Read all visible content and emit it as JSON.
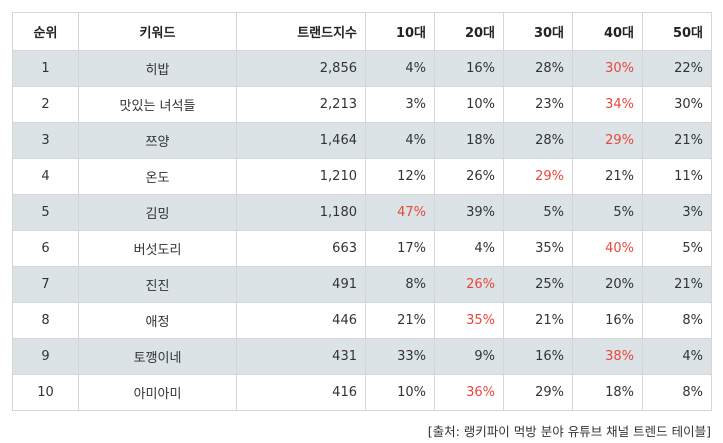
{
  "table": {
    "headers": [
      "순위",
      "키워드",
      "트랜드지수",
      "10대",
      "20대",
      "30대",
      "40대",
      "50대"
    ],
    "rows": [
      {
        "rank": "1",
        "keyword": "히밥",
        "index": "2,856",
        "ages": [
          "4%",
          "16%",
          "28%",
          "30%",
          "22%"
        ],
        "highlight": 3
      },
      {
        "rank": "2",
        "keyword": "맛있는 녀석들",
        "index": "2,213",
        "ages": [
          "3%",
          "10%",
          "23%",
          "34%",
          "30%"
        ],
        "highlight": 3
      },
      {
        "rank": "3",
        "keyword": "쯔양",
        "index": "1,464",
        "ages": [
          "4%",
          "18%",
          "28%",
          "29%",
          "21%"
        ],
        "highlight": 3
      },
      {
        "rank": "4",
        "keyword": "온도",
        "index": "1,210",
        "ages": [
          "12%",
          "26%",
          "29%",
          "21%",
          "11%"
        ],
        "highlight": 2
      },
      {
        "rank": "5",
        "keyword": "김밍",
        "index": "1,180",
        "ages": [
          "47%",
          "39%",
          "5%",
          "5%",
          "3%"
        ],
        "highlight": 0
      },
      {
        "rank": "6",
        "keyword": "버섯도리",
        "index": "663",
        "ages": [
          "17%",
          "4%",
          "35%",
          "40%",
          "5%"
        ],
        "highlight": 3
      },
      {
        "rank": "7",
        "keyword": "진진",
        "index": "491",
        "ages": [
          "8%",
          "26%",
          "25%",
          "20%",
          "21%"
        ],
        "highlight": 1
      },
      {
        "rank": "8",
        "keyword": "애정",
        "index": "446",
        "ages": [
          "21%",
          "35%",
          "21%",
          "16%",
          "8%"
        ],
        "highlight": 1
      },
      {
        "rank": "9",
        "keyword": "토깽이네",
        "index": "431",
        "ages": [
          "33%",
          "9%",
          "16%",
          "38%",
          "4%"
        ],
        "highlight": 3
      },
      {
        "rank": "10",
        "keyword": "아미아미",
        "index": "416",
        "ages": [
          "10%",
          "36%",
          "29%",
          "18%",
          "8%"
        ],
        "highlight": 1
      }
    ]
  },
  "source": "[출처: 랭키파이 먹방 분야 유튜브 채널 트렌드 테이블]",
  "colors": {
    "highlight": "#e8473b",
    "shaded_row": "#dbe3e6",
    "border": "#d6d6d6"
  }
}
